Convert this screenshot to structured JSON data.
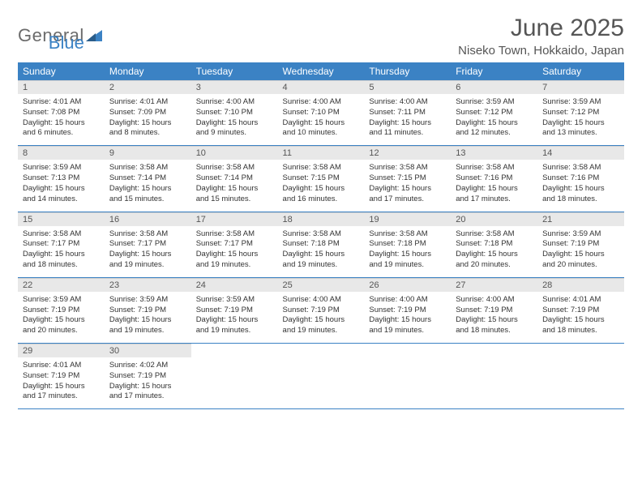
{
  "logo": {
    "general": "General",
    "blue": "Blue",
    "tri_color": "#3b82c4"
  },
  "header": {
    "title": "June 2025",
    "location": "Niseko Town, Hokkaido, Japan"
  },
  "colors": {
    "header_bg": "#3b82c4",
    "header_text": "#ffffff",
    "daynum_bg": "#e8e8e8",
    "text": "#333333"
  },
  "day_headers": [
    "Sunday",
    "Monday",
    "Tuesday",
    "Wednesday",
    "Thursday",
    "Friday",
    "Saturday"
  ],
  "weeks": [
    [
      {
        "num": "1",
        "sunrise": "Sunrise: 4:01 AM",
        "sunset": "Sunset: 7:08 PM",
        "day1": "Daylight: 15 hours",
        "day2": "and 6 minutes."
      },
      {
        "num": "2",
        "sunrise": "Sunrise: 4:01 AM",
        "sunset": "Sunset: 7:09 PM",
        "day1": "Daylight: 15 hours",
        "day2": "and 8 minutes."
      },
      {
        "num": "3",
        "sunrise": "Sunrise: 4:00 AM",
        "sunset": "Sunset: 7:10 PM",
        "day1": "Daylight: 15 hours",
        "day2": "and 9 minutes."
      },
      {
        "num": "4",
        "sunrise": "Sunrise: 4:00 AM",
        "sunset": "Sunset: 7:10 PM",
        "day1": "Daylight: 15 hours",
        "day2": "and 10 minutes."
      },
      {
        "num": "5",
        "sunrise": "Sunrise: 4:00 AM",
        "sunset": "Sunset: 7:11 PM",
        "day1": "Daylight: 15 hours",
        "day2": "and 11 minutes."
      },
      {
        "num": "6",
        "sunrise": "Sunrise: 3:59 AM",
        "sunset": "Sunset: 7:12 PM",
        "day1": "Daylight: 15 hours",
        "day2": "and 12 minutes."
      },
      {
        "num": "7",
        "sunrise": "Sunrise: 3:59 AM",
        "sunset": "Sunset: 7:12 PM",
        "day1": "Daylight: 15 hours",
        "day2": "and 13 minutes."
      }
    ],
    [
      {
        "num": "8",
        "sunrise": "Sunrise: 3:59 AM",
        "sunset": "Sunset: 7:13 PM",
        "day1": "Daylight: 15 hours",
        "day2": "and 14 minutes."
      },
      {
        "num": "9",
        "sunrise": "Sunrise: 3:58 AM",
        "sunset": "Sunset: 7:14 PM",
        "day1": "Daylight: 15 hours",
        "day2": "and 15 minutes."
      },
      {
        "num": "10",
        "sunrise": "Sunrise: 3:58 AM",
        "sunset": "Sunset: 7:14 PM",
        "day1": "Daylight: 15 hours",
        "day2": "and 15 minutes."
      },
      {
        "num": "11",
        "sunrise": "Sunrise: 3:58 AM",
        "sunset": "Sunset: 7:15 PM",
        "day1": "Daylight: 15 hours",
        "day2": "and 16 minutes."
      },
      {
        "num": "12",
        "sunrise": "Sunrise: 3:58 AM",
        "sunset": "Sunset: 7:15 PM",
        "day1": "Daylight: 15 hours",
        "day2": "and 17 minutes."
      },
      {
        "num": "13",
        "sunrise": "Sunrise: 3:58 AM",
        "sunset": "Sunset: 7:16 PM",
        "day1": "Daylight: 15 hours",
        "day2": "and 17 minutes."
      },
      {
        "num": "14",
        "sunrise": "Sunrise: 3:58 AM",
        "sunset": "Sunset: 7:16 PM",
        "day1": "Daylight: 15 hours",
        "day2": "and 18 minutes."
      }
    ],
    [
      {
        "num": "15",
        "sunrise": "Sunrise: 3:58 AM",
        "sunset": "Sunset: 7:17 PM",
        "day1": "Daylight: 15 hours",
        "day2": "and 18 minutes."
      },
      {
        "num": "16",
        "sunrise": "Sunrise: 3:58 AM",
        "sunset": "Sunset: 7:17 PM",
        "day1": "Daylight: 15 hours",
        "day2": "and 19 minutes."
      },
      {
        "num": "17",
        "sunrise": "Sunrise: 3:58 AM",
        "sunset": "Sunset: 7:17 PM",
        "day1": "Daylight: 15 hours",
        "day2": "and 19 minutes."
      },
      {
        "num": "18",
        "sunrise": "Sunrise: 3:58 AM",
        "sunset": "Sunset: 7:18 PM",
        "day1": "Daylight: 15 hours",
        "day2": "and 19 minutes."
      },
      {
        "num": "19",
        "sunrise": "Sunrise: 3:58 AM",
        "sunset": "Sunset: 7:18 PM",
        "day1": "Daylight: 15 hours",
        "day2": "and 19 minutes."
      },
      {
        "num": "20",
        "sunrise": "Sunrise: 3:58 AM",
        "sunset": "Sunset: 7:18 PM",
        "day1": "Daylight: 15 hours",
        "day2": "and 20 minutes."
      },
      {
        "num": "21",
        "sunrise": "Sunrise: 3:59 AM",
        "sunset": "Sunset: 7:19 PM",
        "day1": "Daylight: 15 hours",
        "day2": "and 20 minutes."
      }
    ],
    [
      {
        "num": "22",
        "sunrise": "Sunrise: 3:59 AM",
        "sunset": "Sunset: 7:19 PM",
        "day1": "Daylight: 15 hours",
        "day2": "and 20 minutes."
      },
      {
        "num": "23",
        "sunrise": "Sunrise: 3:59 AM",
        "sunset": "Sunset: 7:19 PM",
        "day1": "Daylight: 15 hours",
        "day2": "and 19 minutes."
      },
      {
        "num": "24",
        "sunrise": "Sunrise: 3:59 AM",
        "sunset": "Sunset: 7:19 PM",
        "day1": "Daylight: 15 hours",
        "day2": "and 19 minutes."
      },
      {
        "num": "25",
        "sunrise": "Sunrise: 4:00 AM",
        "sunset": "Sunset: 7:19 PM",
        "day1": "Daylight: 15 hours",
        "day2": "and 19 minutes."
      },
      {
        "num": "26",
        "sunrise": "Sunrise: 4:00 AM",
        "sunset": "Sunset: 7:19 PM",
        "day1": "Daylight: 15 hours",
        "day2": "and 19 minutes."
      },
      {
        "num": "27",
        "sunrise": "Sunrise: 4:00 AM",
        "sunset": "Sunset: 7:19 PM",
        "day1": "Daylight: 15 hours",
        "day2": "and 18 minutes."
      },
      {
        "num": "28",
        "sunrise": "Sunrise: 4:01 AM",
        "sunset": "Sunset: 7:19 PM",
        "day1": "Daylight: 15 hours",
        "day2": "and 18 minutes."
      }
    ],
    [
      {
        "num": "29",
        "sunrise": "Sunrise: 4:01 AM",
        "sunset": "Sunset: 7:19 PM",
        "day1": "Daylight: 15 hours",
        "day2": "and 17 minutes."
      },
      {
        "num": "30",
        "sunrise": "Sunrise: 4:02 AM",
        "sunset": "Sunset: 7:19 PM",
        "day1": "Daylight: 15 hours",
        "day2": "and 17 minutes."
      },
      {
        "empty": true
      },
      {
        "empty": true
      },
      {
        "empty": true
      },
      {
        "empty": true
      },
      {
        "empty": true
      }
    ]
  ]
}
